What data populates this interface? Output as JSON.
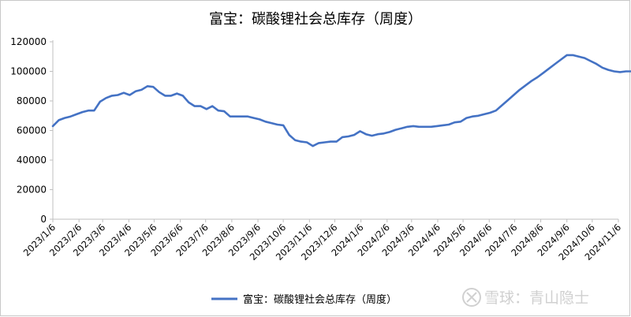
{
  "watermark": "雪球：青山隐士",
  "colors": {
    "series": "#4472C4",
    "axis": "#bfbfbf",
    "text": "#000000"
  },
  "chart_data": {
    "type": "line",
    "title": "富宝：碳酸锂社会总库存（周度）",
    "legend_position": "bottom",
    "grid": false,
    "ylim": [
      0,
      120000
    ],
    "y_ticks": [
      0,
      20000,
      40000,
      60000,
      80000,
      100000,
      120000
    ],
    "x_tick_labels": [
      "2023/1/6",
      "2023/2/6",
      "2023/3/6",
      "2023/4/6",
      "2023/5/6",
      "2023/6/6",
      "2023/7/6",
      "2023/8/6",
      "2023/9/6",
      "2023/10/6",
      "2023/11/6",
      "2023/12/6",
      "2024/1/6",
      "2024/2/6",
      "2024/3/6",
      "2024/4/6",
      "2024/5/6",
      "2024/6/6",
      "2024/7/6",
      "2024/8/6",
      "2024/9/6",
      "2024/10/6",
      "2024/11/6"
    ],
    "series": [
      {
        "name": "富宝：碳酸锂社会总库存（周度）",
        "points": [
          [
            "2023/1/6",
            63000
          ],
          [
            "2023/1/13",
            67000
          ],
          [
            "2023/1/20",
            68500
          ],
          [
            "2023/1/27",
            69500
          ],
          [
            "2023/2/3",
            71000
          ],
          [
            "2023/2/10",
            72500
          ],
          [
            "2023/2/17",
            73500
          ],
          [
            "2023/2/24",
            73500
          ],
          [
            "2023/3/3",
            79500
          ],
          [
            "2023/3/10",
            82000
          ],
          [
            "2023/3/17",
            83500
          ],
          [
            "2023/3/24",
            84000
          ],
          [
            "2023/3/31",
            85500
          ],
          [
            "2023/4/7",
            84000
          ],
          [
            "2023/4/14",
            86500
          ],
          [
            "2023/4/21",
            87500
          ],
          [
            "2023/4/28",
            90000
          ],
          [
            "2023/5/5",
            89500
          ],
          [
            "2023/5/12",
            86000
          ],
          [
            "2023/5/19",
            83500
          ],
          [
            "2023/5/26",
            83500
          ],
          [
            "2023/6/2",
            85000
          ],
          [
            "2023/6/9",
            83500
          ],
          [
            "2023/6/16",
            79000
          ],
          [
            "2023/6/23",
            76500
          ],
          [
            "2023/6/30",
            76500
          ],
          [
            "2023/7/7",
            74500
          ],
          [
            "2023/7/14",
            76500
          ],
          [
            "2023/7/21",
            73500
          ],
          [
            "2023/7/28",
            73000
          ],
          [
            "2023/8/4",
            69500
          ],
          [
            "2023/8/11",
            69500
          ],
          [
            "2023/8/18",
            69500
          ],
          [
            "2023/8/25",
            69500
          ],
          [
            "2023/9/1",
            68500
          ],
          [
            "2023/9/8",
            67500
          ],
          [
            "2023/9/15",
            66000
          ],
          [
            "2023/9/22",
            65000
          ],
          [
            "2023/9/29",
            64000
          ],
          [
            "2023/10/6",
            63500
          ],
          [
            "2023/10/13",
            57000
          ],
          [
            "2023/10/20",
            53500
          ],
          [
            "2023/10/27",
            52500
          ],
          [
            "2023/11/3",
            52000
          ],
          [
            "2023/11/10",
            49500
          ],
          [
            "2023/11/17",
            51500
          ],
          [
            "2023/11/24",
            52000
          ],
          [
            "2023/12/1",
            52500
          ],
          [
            "2023/12/8",
            52500
          ],
          [
            "2023/12/15",
            55500
          ],
          [
            "2023/12/22",
            56000
          ],
          [
            "2023/12/29",
            57000
          ],
          [
            "2024/1/5",
            59500
          ],
          [
            "2024/1/12",
            57500
          ],
          [
            "2024/1/19",
            56500
          ],
          [
            "2024/1/26",
            57500
          ],
          [
            "2024/2/2",
            58000
          ],
          [
            "2024/2/9",
            59000
          ],
          [
            "2024/2/16",
            60500
          ],
          [
            "2024/2/23",
            61500
          ],
          [
            "2024/3/1",
            62500
          ],
          [
            "2024/3/8",
            63000
          ],
          [
            "2024/3/15",
            62500
          ],
          [
            "2024/3/22",
            62500
          ],
          [
            "2024/3/29",
            62500
          ],
          [
            "2024/4/5",
            63000
          ],
          [
            "2024/4/12",
            63500
          ],
          [
            "2024/4/19",
            64000
          ],
          [
            "2024/4/26",
            65500
          ],
          [
            "2024/5/3",
            66000
          ],
          [
            "2024/5/10",
            68500
          ],
          [
            "2024/5/17",
            69500
          ],
          [
            "2024/5/24",
            70000
          ],
          [
            "2024/5/31",
            71000
          ],
          [
            "2024/6/7",
            72000
          ],
          [
            "2024/6/14",
            73500
          ],
          [
            "2024/6/21",
            77000
          ],
          [
            "2024/6/28",
            80500
          ],
          [
            "2024/7/5",
            84000
          ],
          [
            "2024/7/12",
            87500
          ],
          [
            "2024/7/19",
            90500
          ],
          [
            "2024/7/26",
            93500
          ],
          [
            "2024/8/2",
            96000
          ],
          [
            "2024/8/9",
            99000
          ],
          [
            "2024/8/16",
            102000
          ],
          [
            "2024/8/23",
            105000
          ],
          [
            "2024/8/30",
            108000
          ],
          [
            "2024/9/6",
            111000
          ],
          [
            "2024/9/13",
            111000
          ],
          [
            "2024/9/20",
            110000
          ],
          [
            "2024/9/27",
            109000
          ],
          [
            "2024/10/4",
            107000
          ],
          [
            "2024/10/11",
            105000
          ],
          [
            "2024/10/18",
            102500
          ],
          [
            "2024/10/25",
            101000
          ],
          [
            "2024/11/1",
            100000
          ],
          [
            "2024/11/8",
            99500
          ],
          [
            "2024/11/15",
            100000
          ],
          [
            "2024/11/22",
            100000
          ]
        ]
      }
    ]
  }
}
